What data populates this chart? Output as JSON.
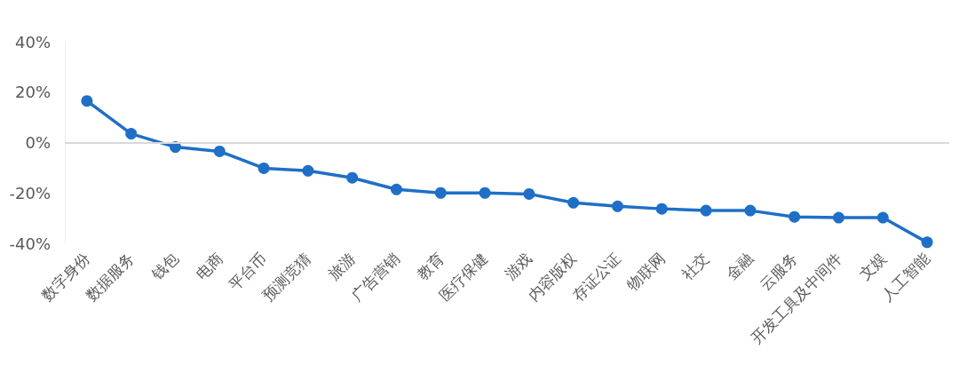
{
  "chart_data": {
    "type": "line",
    "categories": [
      "数字身份",
      "数据服务",
      "钱包",
      "电商",
      "平台币",
      "预测竞猜",
      "旅游",
      "广告营销",
      "教育",
      "医疗保健",
      "游戏",
      "内容版权",
      "存证公证",
      "物联网",
      "社交",
      "金融",
      "云服务",
      "开发工具及中间件",
      "文娱",
      "人工智能"
    ],
    "series": [
      {
        "color": "#1f6fc6",
        "values": [
          16.5,
          3.5,
          -1.8,
          -3.5,
          -10.2,
          -11.2,
          -14,
          -18.6,
          -20,
          -20,
          -20.4,
          -23.9,
          -25.3,
          -26.3,
          -27,
          -27,
          -29.5,
          -29.8,
          -29.8,
          -39.6
        ]
      }
    ],
    "ylim": [
      -40,
      40
    ],
    "yticks": [
      {
        "value": -40,
        "label": "-40%"
      },
      {
        "value": -20,
        "label": "-20%"
      },
      {
        "value": 0,
        "label": "0%"
      },
      {
        "value": 20,
        "label": "20%"
      },
      {
        "value": 40,
        "label": "40%"
      }
    ],
    "ref_lines": [
      {
        "axis": "y",
        "value": 0,
        "color": "#d9d9d9"
      }
    ],
    "grid": false,
    "marker": "circle",
    "line_style": "solid"
  }
}
